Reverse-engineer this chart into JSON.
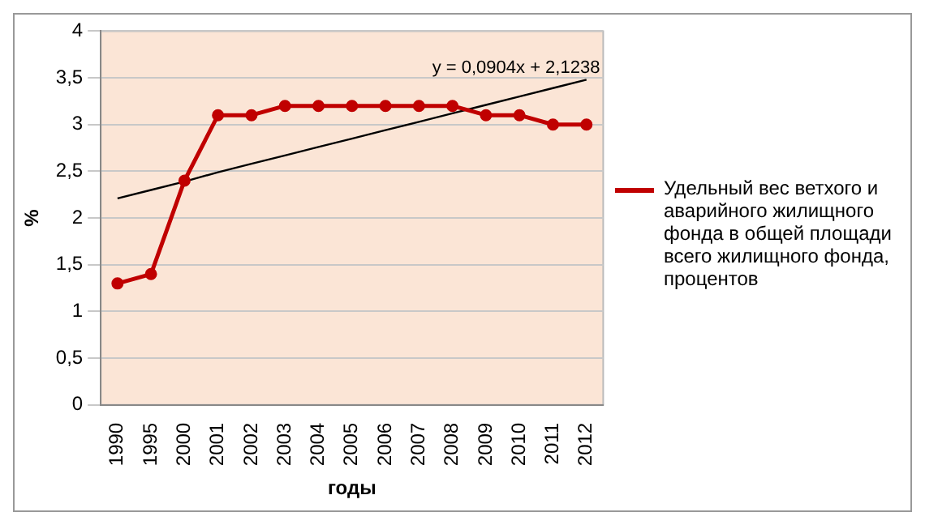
{
  "chart_data": {
    "type": "line",
    "xlabel": "годы",
    "ylabel": "%",
    "categories": [
      "1990",
      "1995",
      "2000",
      "2001",
      "2002",
      "2003",
      "2004",
      "2005",
      "2006",
      "2007",
      "2008",
      "2009",
      "2010",
      "2011",
      "2012"
    ],
    "series": [
      {
        "name": "Удельный вес ветхого и аварийного жилищного фонда в общей площади всего жилищного фонда, процентов",
        "color": "#c00000",
        "marker": "circle",
        "values": [
          1.3,
          1.4,
          2.4,
          3.1,
          3.1,
          3.2,
          3.2,
          3.2,
          3.2,
          3.2,
          3.2,
          3.1,
          3.1,
          3.0,
          3.0
        ]
      },
      {
        "type": "line",
        "color": "#000000",
        "marker": "none",
        "values": [
          2.21,
          2.3,
          2.39,
          2.49,
          2.58,
          2.67,
          2.76,
          2.85,
          2.94,
          3.03,
          3.12,
          3.21,
          3.3,
          3.39,
          3.48
        ]
      }
    ],
    "annotations": [
      "y = 0,0904x + 2,1238"
    ],
    "ylim": [
      0,
      4
    ],
    "yticks": [
      0,
      {
        "value": 0.5,
        "label": "0,5"
      },
      1,
      {
        "value": 1.5,
        "label": "1,5"
      },
      2,
      {
        "value": 2.5,
        "label": "2,5"
      },
      3,
      {
        "value": 3.5,
        "label": "3,5"
      },
      4
    ],
    "grid": "y",
    "legend": "right"
  }
}
